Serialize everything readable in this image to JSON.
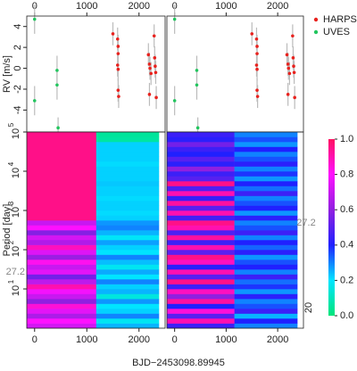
{
  "chart_data": [
    {
      "type": "scatter",
      "ylabel": "RV [m/s]",
      "legend": "top-right",
      "xlim": [
        -150,
        2500
      ],
      "ylim": [
        -6.1,
        5.0
      ],
      "xticks": [
        0,
        1000,
        2000
      ],
      "yticks": [
        -4,
        -2,
        0,
        2,
        4
      ],
      "series": [
        {
          "name": "HARPS",
          "color": "#e8221e",
          "x": [
            1500,
            1590,
            1600,
            1600,
            1590,
            1600,
            1600,
            1610,
            2180,
            2200,
            2210,
            2230,
            2200,
            2290,
            2300,
            2310,
            2320,
            2330
          ],
          "values": [
            3.3,
            2.8,
            2.1,
            1.4,
            0.3,
            -0.1,
            -2.1,
            -2.7,
            1.3,
            0.4,
            0.0,
            -0.5,
            -2.5,
            3.1,
            1.0,
            0.2,
            -0.4,
            -2.8
          ],
          "errors": [
            1.1,
            1.1,
            1.1,
            1.1,
            1.1,
            1.1,
            1.1,
            1.1,
            1.1,
            1.1,
            1.1,
            1.1,
            1.1,
            1.1,
            1.1,
            1.1,
            1.1,
            1.1
          ]
        },
        {
          "name": "UVES",
          "color": "#22c55e",
          "x": [
            0,
            0,
            430,
            430,
            450
          ],
          "values": [
            4.7,
            -3.1,
            -0.2,
            -1.6,
            -5.7
          ],
          "errors": [
            1.4,
            1.4,
            1.4,
            1.4,
            1.0
          ]
        }
      ]
    },
    {
      "type": "scatter",
      "xlim": [
        -150,
        2500
      ],
      "ylim": [
        -6.1,
        5.0
      ],
      "xticks": [
        0,
        1000,
        2000
      ],
      "series": [
        {
          "color": "#e8221e",
          "x": [
            1500,
            1590,
            1600,
            1600,
            1590,
            1600,
            1600,
            1610,
            2180,
            2200,
            2210,
            2230,
            2200,
            2290,
            2300,
            2310,
            2320,
            2330
          ],
          "values": [
            3.3,
            2.8,
            2.1,
            1.4,
            0.3,
            -0.1,
            -2.1,
            -2.7,
            1.3,
            0.4,
            0.0,
            -0.5,
            -2.5,
            3.1,
            1.0,
            0.2,
            -0.4,
            -2.8
          ],
          "errors": [
            1.1,
            1.1,
            1.1,
            1.1,
            1.1,
            1.1,
            1.1,
            1.1,
            1.1,
            1.1,
            1.1,
            1.1,
            1.1,
            1.1,
            1.1,
            1.1,
            1.1,
            1.1
          ]
        },
        {
          "color": "#22c55e",
          "x": [
            0,
            0,
            430,
            430,
            450
          ],
          "values": [
            4.7,
            -3.1,
            -0.2,
            -1.6,
            -5.7
          ],
          "errors": [
            1.4,
            1.4,
            1.4,
            1.4,
            1.0
          ]
        }
      ]
    },
    {
      "type": "heatmap",
      "ylabel": "Period [day]",
      "xlabel": "BJD−2453098.89945",
      "log_y": true,
      "xlim": [
        -150,
        2500
      ],
      "ylim": [
        1,
        100000
      ],
      "xticks": [
        0,
        1000,
        2000
      ],
      "yticks": [
        {
          "value": 10,
          "label": "10",
          "exponent": "1"
        },
        {
          "value": 100,
          "label": "10",
          "exponent": "2"
        },
        {
          "value": 1000,
          "label": "10",
          "exponent": "3"
        },
        {
          "value": 10000,
          "label": "10",
          "exponent": "4"
        },
        {
          "value": 100000,
          "label": "10",
          "exponent": "5"
        }
      ],
      "annotation": {
        "value": 27.2,
        "label": "27.2"
      },
      "x_edges": [
        -150,
        1180,
        2380
      ],
      "y_edges": [
        1,
        1.33,
        1.78,
        2.37,
        3.16,
        4.22,
        5.62,
        7.5,
        10,
        13.3,
        17.8,
        23.7,
        31.6,
        42.2,
        56.2,
        75,
        100,
        133,
        178,
        237,
        316,
        422,
        562,
        750,
        1000,
        1334,
        1778,
        2371,
        3162,
        4217,
        5623,
        7499,
        10000,
        13335,
        17783,
        23714,
        31623,
        42170,
        56234,
        74989,
        100000
      ],
      "values": [
        [
          0.72,
          0.8,
          0.65,
          0.75,
          0.85,
          0.6,
          0.7,
          0.78,
          0.9,
          0.68,
          0.55,
          0.75,
          0.7,
          0.82,
          0.62,
          0.74,
          0.88,
          0.66,
          0.72,
          0.58,
          0.8,
          0.7,
          0.95,
          0.95,
          0.95,
          0.95,
          0.95,
          0.95,
          0.95,
          0.95,
          0.95,
          0.95,
          0.95,
          0.95,
          0.95,
          0.95,
          0.95,
          0.95,
          0.95,
          0.95
        ],
        [
          0.25,
          0.18,
          0.3,
          0.22,
          0.2,
          0.28,
          0.15,
          0.25,
          0.22,
          0.3,
          0.2,
          0.26,
          0.18,
          0.24,
          0.3,
          0.2,
          0.22,
          0.27,
          0.19,
          0.25,
          0.3,
          0.28,
          0.22,
          0.21,
          0.22,
          0.22,
          0.21,
          0.22,
          0.22,
          0.23,
          0.22,
          0.22,
          0.22,
          0.21,
          0.22,
          0.22,
          0.22,
          0.22,
          0.06,
          0.05
        ]
      ],
      "colormap": [
        "#00e57a",
        "#00e5ff",
        "#2020ff",
        "#9020e0",
        "#ff10ff",
        "#ff1060"
      ],
      "clim": [
        0,
        1
      ]
    },
    {
      "type": "heatmap",
      "log_y": true,
      "xlim": [
        -150,
        2500
      ],
      "ylim": [
        1,
        100000
      ],
      "xticks": [
        0,
        1000,
        2000
      ],
      "x_edges": [
        -150,
        1160,
        2380
      ],
      "y_edges": [
        1,
        1.33,
        1.78,
        2.37,
        3.16,
        4.22,
        5.62,
        7.5,
        10,
        13.3,
        17.8,
        23.7,
        31.6,
        42.2,
        56.2,
        75,
        100,
        133,
        178,
        237,
        316,
        422,
        562,
        750,
        1000,
        1334,
        1778,
        2371,
        3162,
        4217,
        5623,
        7499,
        10000,
        13335,
        17783,
        23714,
        31623,
        42170,
        56234,
        74989,
        100000
      ],
      "values": [
        [
          0.45,
          0.9,
          0.5,
          0.85,
          0.4,
          0.92,
          0.6,
          0.88,
          0.45,
          0.95,
          0.5,
          0.9,
          0.42,
          0.88,
          0.95,
          0.5,
          0.9,
          0.45,
          0.92,
          0.48,
          0.9,
          0.95,
          0.46,
          0.9,
          0.5,
          0.92,
          0.44,
          0.9,
          0.48,
          0.95,
          0.5,
          0.45,
          0.6,
          0.42,
          0.5,
          0.4,
          0.45,
          0.55,
          0.42,
          0.45
        ],
        [
          0.3,
          0.4,
          0.25,
          0.45,
          0.35,
          0.3,
          0.42,
          0.28,
          0.38,
          0.32,
          0.45,
          0.3,
          0.4,
          0.35,
          0.28,
          0.42,
          0.33,
          0.4,
          0.3,
          0.45,
          0.35,
          0.3,
          0.42,
          0.28,
          0.4,
          0.35,
          0.3,
          0.45,
          0.32,
          0.4,
          0.28,
          0.38,
          0.3,
          0.42,
          0.35,
          0.3,
          0.4,
          0.28,
          0.35,
          0.3
        ]
      ],
      "colormap": [
        "#00e57a",
        "#00e5ff",
        "#2020ff",
        "#9020e0",
        "#ff10ff",
        "#ff1060"
      ],
      "clim": [
        0,
        1
      ],
      "colorbar": {
        "lim": [
          0,
          1
        ],
        "ticks": [
          {
            "value": 0,
            "label": "0.0"
          },
          0.2,
          0.4,
          0.6,
          0.8,
          {
            "value": 1,
            "label": "1.0"
          }
        ]
      },
      "notes": [
        "27.2",
        "20"
      ]
    }
  ]
}
